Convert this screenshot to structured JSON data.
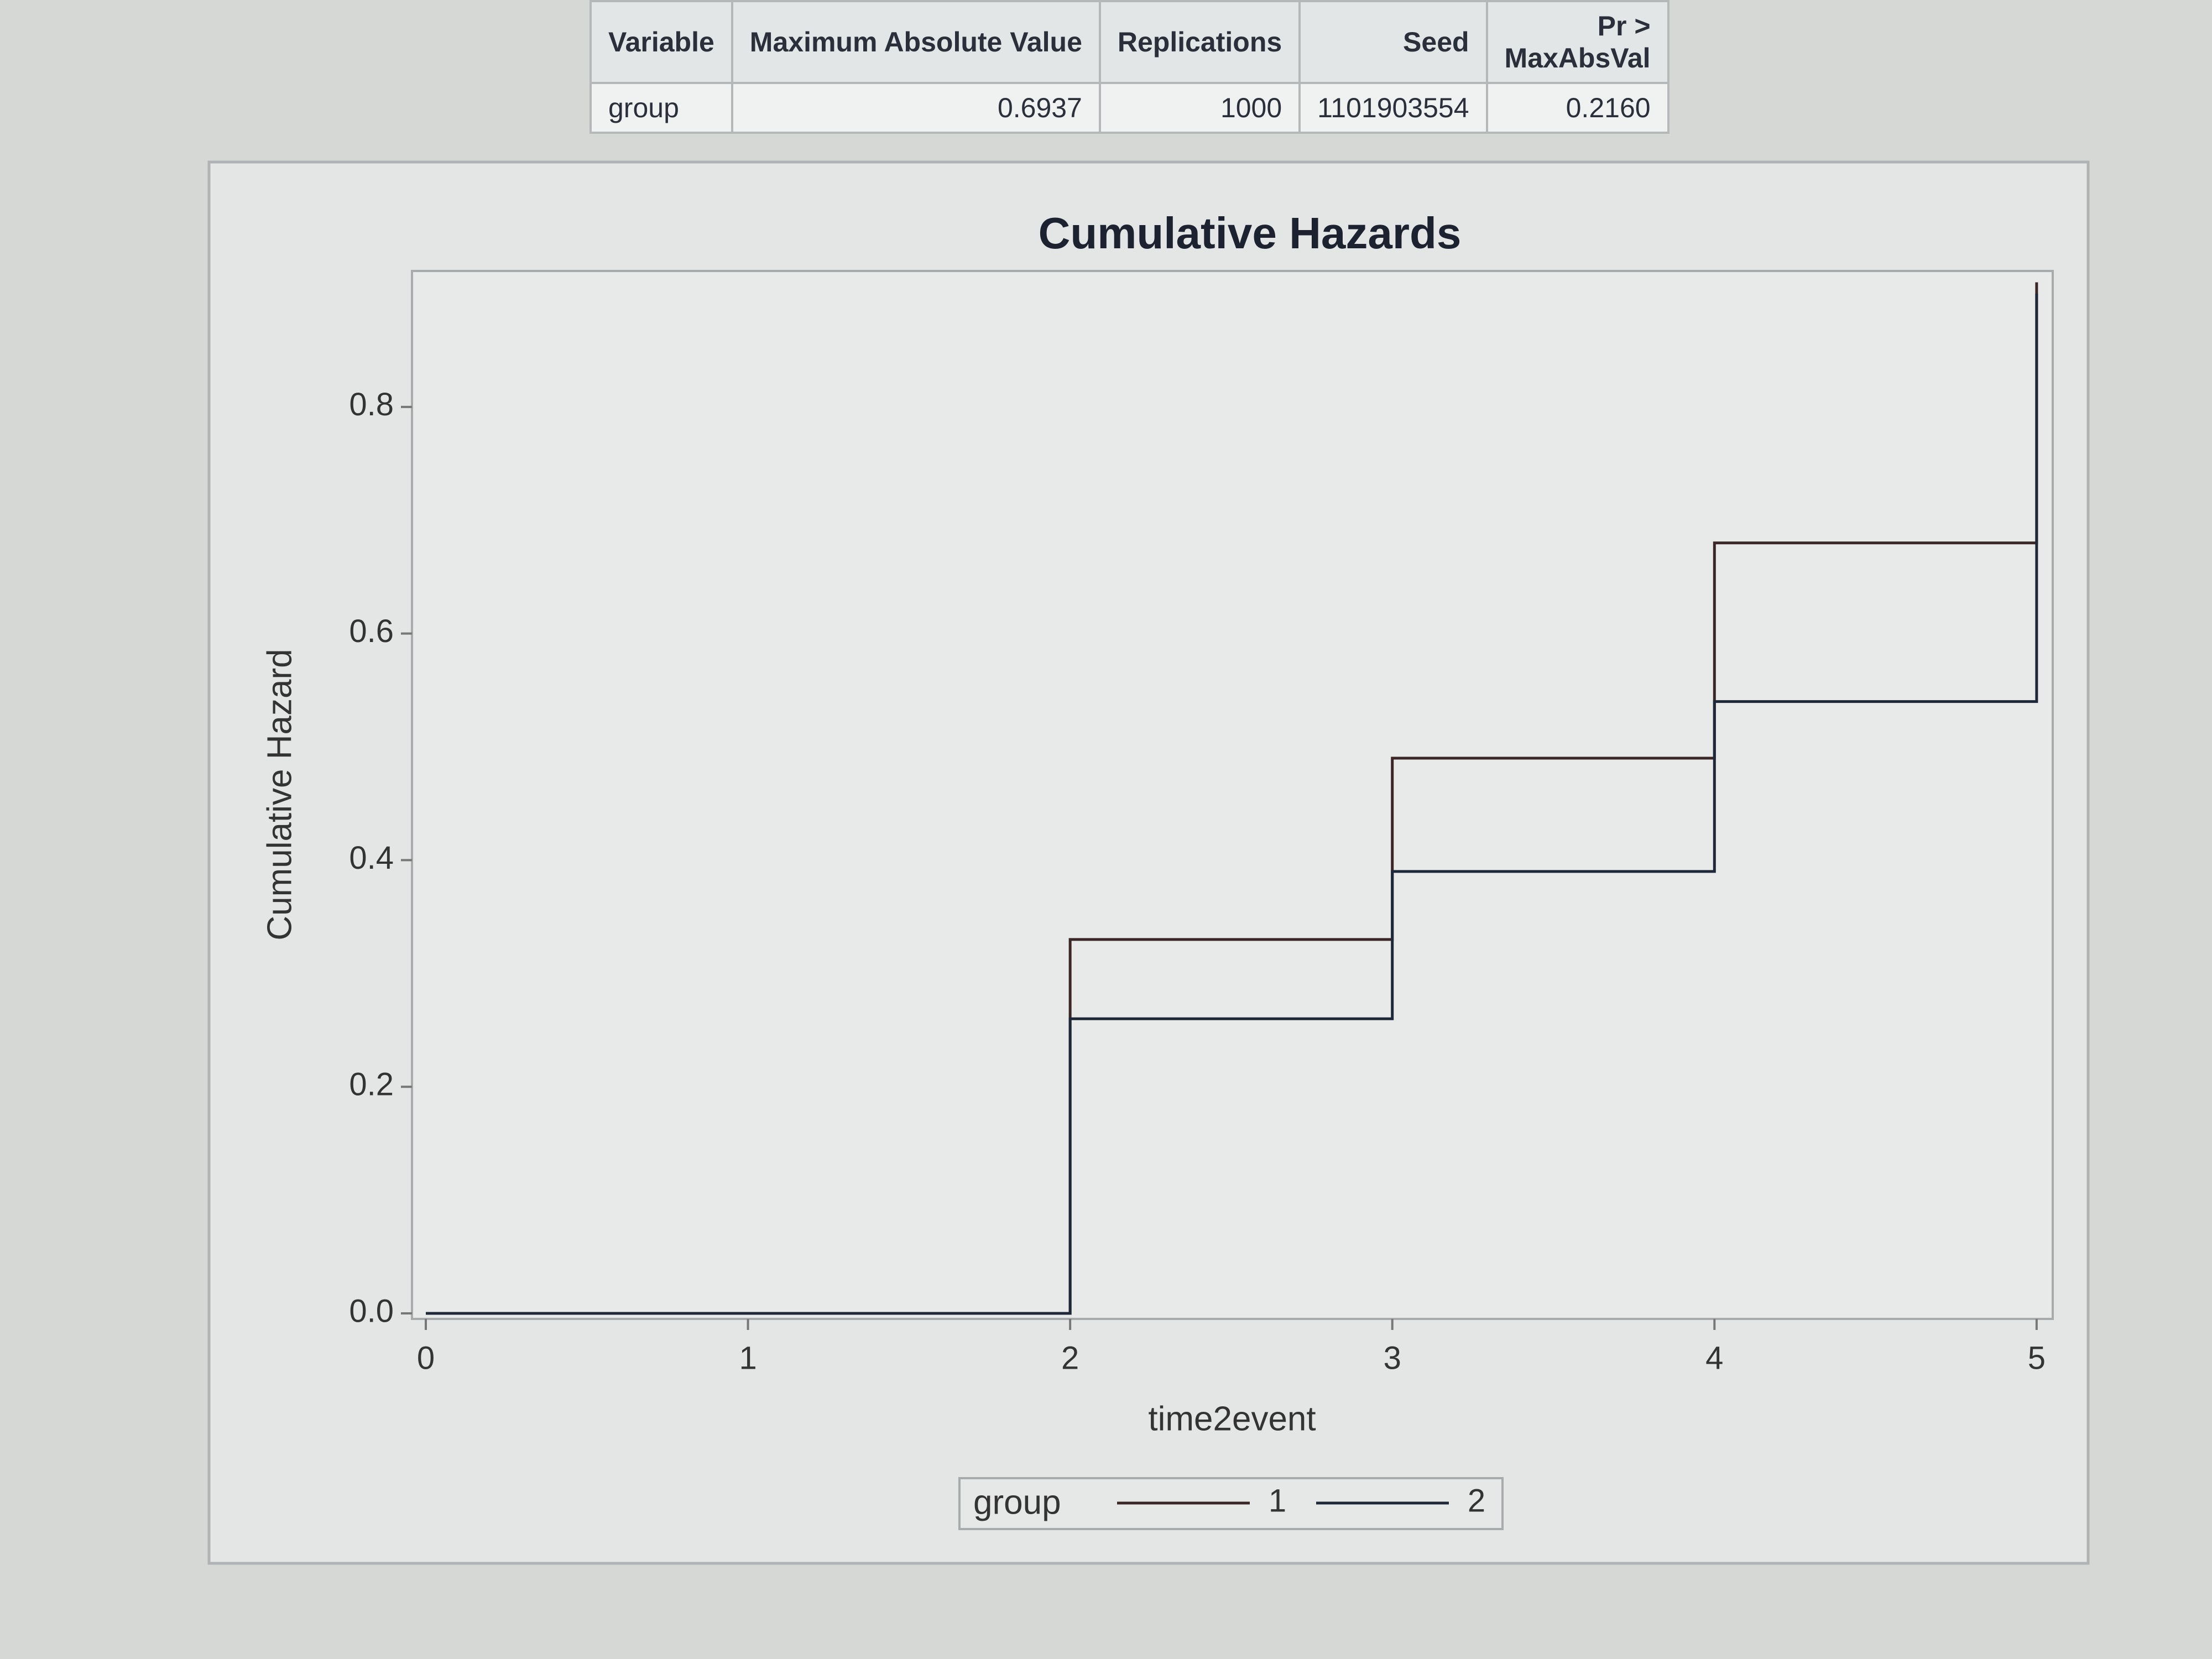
{
  "table": {
    "header": [
      "Variable",
      "Maximum Absolute Value",
      "Replications",
      "Seed",
      "Pr > MaxAbsVal"
    ],
    "rows": [
      [
        "group",
        "0.6937",
        "1000",
        "1101903554",
        "0.2160"
      ]
    ]
  },
  "chart_data": {
    "type": "line",
    "step": true,
    "title": "Cumulative Hazards",
    "x_label": "time2event",
    "y_label": "Cumulative Hazard",
    "x": [
      0,
      2,
      3,
      4,
      5
    ],
    "series": [
      {
        "name": "1",
        "color": "#3a2626",
        "values": [
          0,
          0.33,
          0.49,
          0.68,
          0.91
        ]
      },
      {
        "name": "2",
        "color": "#1e2838",
        "values": [
          0,
          0.26,
          0.39,
          0.54,
          0.9
        ]
      }
    ],
    "legend_title": "group",
    "xlim": [
      0,
      5.05
    ],
    "xticks": [
      0,
      1,
      2,
      3,
      4,
      5
    ],
    "ylim": [
      0,
      0.92
    ],
    "yticks": [
      {
        "value": 0,
        "label": "0.0"
      },
      0.2,
      0.4,
      0.6,
      0.8
    ],
    "grid": false
  }
}
